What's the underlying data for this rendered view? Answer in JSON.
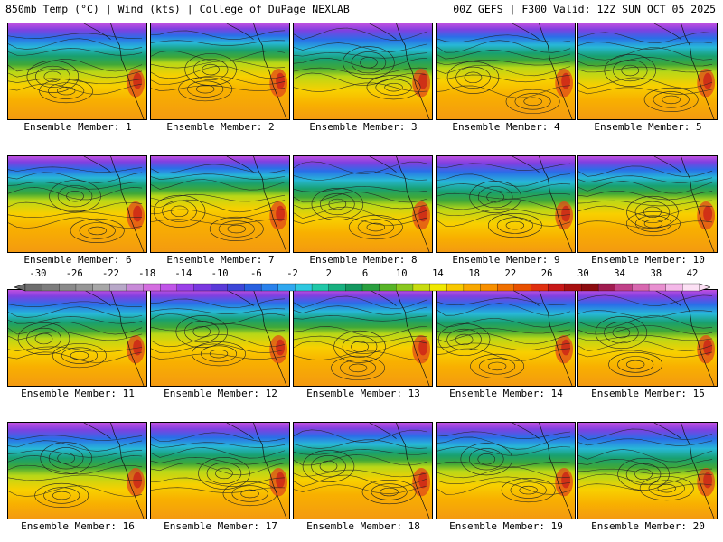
{
  "header": {
    "left": "850mb Temp (°C) | Wind (kts) | College of DuPage NEXLAB",
    "right": "00Z GEFS | F300 Valid: 12Z SUN OCT 05 2025"
  },
  "panels": [
    {
      "label": "Ensemble Member: 1",
      "colder_north": 0.55
    },
    {
      "label": "Ensemble Member: 2",
      "colder_north": 0.45
    },
    {
      "label": "Ensemble Member: 3",
      "colder_north": 0.6
    },
    {
      "label": "Ensemble Member: 4",
      "colder_north": 0.5
    },
    {
      "label": "Ensemble Member: 5",
      "colder_north": 0.55
    },
    {
      "label": "Ensemble Member: 6",
      "colder_north": 0.5
    },
    {
      "label": "Ensemble Member: 7",
      "colder_north": 0.45
    },
    {
      "label": "Ensemble Member: 8",
      "colder_north": 0.55
    },
    {
      "label": "Ensemble Member: 9",
      "colder_north": 0.6
    },
    {
      "label": "Ensemble Member: 10",
      "colder_north": 0.5
    },
    {
      "label": "Ensemble Member: 11",
      "colder_north": 0.55
    },
    {
      "label": "Ensemble Member: 12",
      "colder_north": 0.5
    },
    {
      "label": "Ensemble Member: 13",
      "colder_north": 0.5
    },
    {
      "label": "Ensemble Member: 14",
      "colder_north": 0.55
    },
    {
      "label": "Ensemble Member: 15",
      "colder_north": 0.55
    },
    {
      "label": "Ensemble Member: 16",
      "colder_north": 0.6
    },
    {
      "label": "Ensemble Member: 17",
      "colder_north": 0.55
    },
    {
      "label": "Ensemble Member: 18",
      "colder_north": 0.5
    },
    {
      "label": "Ensemble Member: 19",
      "colder_north": 0.55
    },
    {
      "label": "Ensemble Member: 20",
      "colder_north": 0.6
    }
  ],
  "colorbar": {
    "ticks": [
      "-30",
      "-26",
      "-22",
      "-18",
      "-14",
      "-10",
      "-6",
      "-2",
      "2",
      "6",
      "10",
      "14",
      "18",
      "22",
      "26",
      "30",
      "34",
      "38",
      "42"
    ],
    "colors": [
      "#6e6e6e",
      "#7d7d7d",
      "#8a8a8a",
      "#969696",
      "#a7a7a7",
      "#b8a8c8",
      "#c88ad8",
      "#d46ee0",
      "#c055e8",
      "#9a40e8",
      "#7a38e0",
      "#5a3ad8",
      "#3c46d8",
      "#2860e0",
      "#2a82ec",
      "#30a8f0",
      "#2ec8e0",
      "#20c8a8",
      "#18b080",
      "#149860",
      "#2aa040",
      "#58b428",
      "#8ac820",
      "#c8dc10",
      "#f0e800",
      "#f8c800",
      "#f8a800",
      "#f89000",
      "#f07000",
      "#e85000",
      "#e03010",
      "#c81818",
      "#a81010",
      "#8c0c10",
      "#a01c50",
      "#c04088",
      "#d868b0",
      "#e890d0",
      "#f4b8e8",
      "#fce0f4"
    ]
  }
}
